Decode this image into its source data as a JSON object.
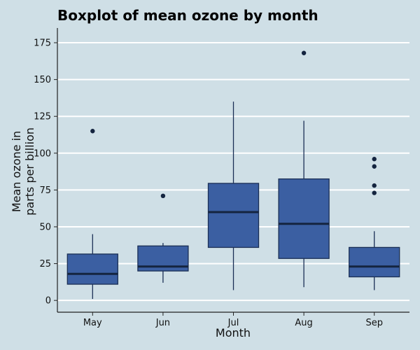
{
  "chart_data": {
    "type": "boxplot",
    "title": "Boxplot of mean ozone by month",
    "xlabel": "Month",
    "ylabel_lines": [
      "Mean ozone in",
      "parts per billion"
    ],
    "ylim": [
      -8,
      185
    ],
    "yticks": [
      0,
      25,
      50,
      75,
      100,
      125,
      150,
      175
    ],
    "grid": "horizontal",
    "colors": {
      "background": "#cfdfe6",
      "box_fill": "#3b5fa2",
      "box_edge": "#1b2f55",
      "median": "#14243f",
      "whisker": "#1b2f55",
      "outlier": "#14243f",
      "grid": "#ffffff",
      "axis": "#222222"
    },
    "categories": [
      "May",
      "Jun",
      "Jul",
      "Aug",
      "Sep"
    ],
    "boxes": [
      {
        "category": "May",
        "min": 1,
        "q1": 11,
        "median": 18,
        "q3": 31.5,
        "max": 45,
        "outliers": [
          115
        ]
      },
      {
        "category": "Jun",
        "min": 12,
        "q1": 20,
        "median": 23,
        "q3": 37,
        "max": 39,
        "outliers": [
          71
        ]
      },
      {
        "category": "Jul",
        "min": 7,
        "q1": 36,
        "median": 60,
        "q3": 79.5,
        "max": 135,
        "outliers": []
      },
      {
        "category": "Aug",
        "min": 9,
        "q1": 28.5,
        "median": 52,
        "q3": 82.5,
        "max": 122,
        "outliers": [
          168
        ]
      },
      {
        "category": "Sep",
        "min": 7,
        "q1": 16,
        "median": 23,
        "q3": 36,
        "max": 47,
        "outliers": [
          73,
          78,
          91,
          96
        ]
      }
    ]
  }
}
